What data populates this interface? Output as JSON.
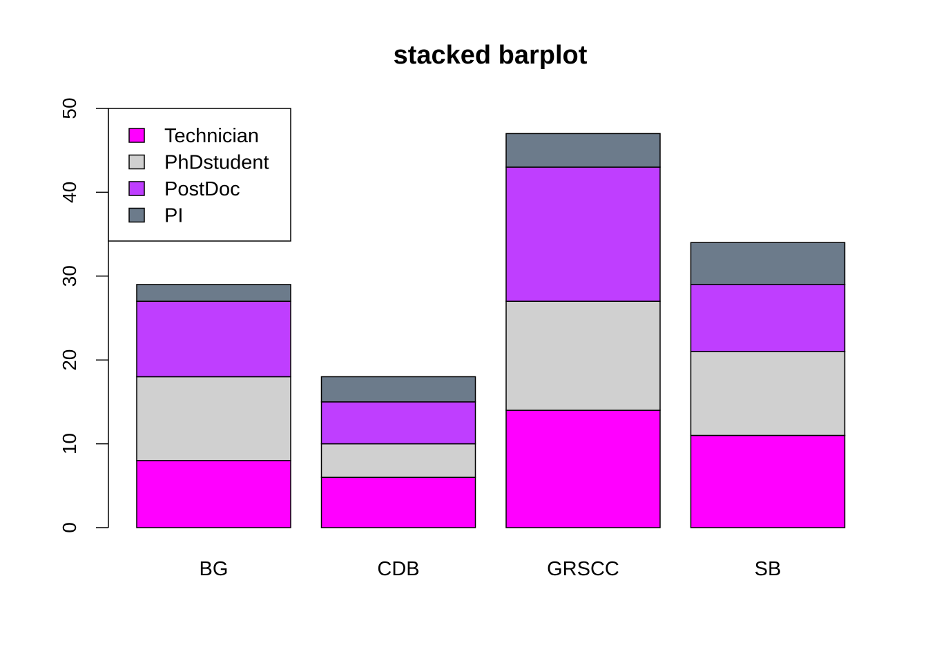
{
  "chart_data": {
    "type": "bar",
    "stacked": true,
    "title": "stacked barplot",
    "xlabel": "",
    "ylabel": "",
    "categories": [
      "BG",
      "CDB",
      "GRSCC",
      "SB"
    ],
    "series": [
      {
        "name": "Technician",
        "color": "#FF00FF",
        "values": [
          8,
          6,
          14,
          11
        ]
      },
      {
        "name": "PhDstudent",
        "color": "#D0D0D0",
        "values": [
          10,
          4,
          13,
          10
        ]
      },
      {
        "name": "PostDoc",
        "color": "#BF3EFF",
        "values": [
          9,
          5,
          16,
          8
        ]
      },
      {
        "name": "PI",
        "color": "#6C7B8B",
        "values": [
          2,
          3,
          4,
          5
        ]
      }
    ],
    "ylim": [
      0,
      50
    ],
    "yticks": [
      0,
      10,
      20,
      30,
      40,
      50
    ],
    "grid": false,
    "legend_position": "top-left"
  }
}
